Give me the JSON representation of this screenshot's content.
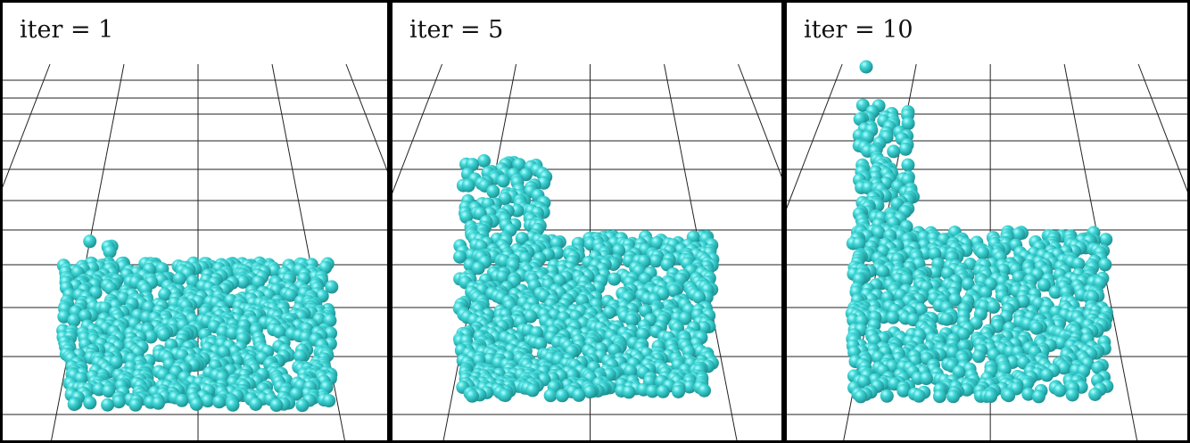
{
  "panels": [
    {
      "label": "iter = 1"
    },
    {
      "label": "iter = 5"
    },
    {
      "label": "iter = 10"
    }
  ]
}
